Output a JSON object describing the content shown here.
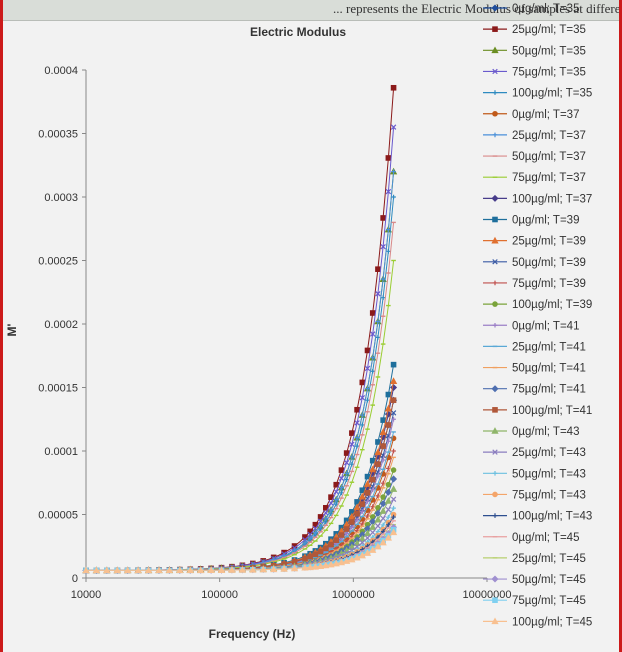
{
  "header_strip": {
    "text": "... represents the Electric Modulus of samples at different temperatures and doses"
  },
  "colors": {
    "red_border": "#cc1a1a",
    "series_palette": [
      "#1f4e9c",
      "#8b1a1a",
      "#6b8e23",
      "#6a5acd",
      "#2e8bc0",
      "#c05a1a",
      "#4a90d9",
      "#d98a8a",
      "#9acd32",
      "#483d8b",
      "#1f6f9c",
      "#e07030",
      "#3b5ba5",
      "#c0504d",
      "#7aa33a",
      "#9b7fc7",
      "#5aa9d6",
      "#f0a060",
      "#4f6fb0",
      "#b0583a",
      "#8fb56a",
      "#8a7dbf",
      "#6cc0e0",
      "#f4a56a",
      "#2e4f8f",
      "#e8a0a0",
      "#b8d070",
      "#a090d0",
      "#80d0f0",
      "#f8c090"
    ]
  },
  "chart_data": {
    "type": "line",
    "title": "Electric Modulus",
    "xlabel": "Frequency (Hz)",
    "ylabel": "M'",
    "xscale": "log",
    "xlim": [
      10000,
      10000000
    ],
    "ylim": [
      0,
      0.0004
    ],
    "xticks": [
      "10000",
      "100000",
      "1000000",
      "10000000"
    ],
    "yticks": [
      "0",
      "0.00005",
      "0.0001",
      "0.00015",
      "0.0002",
      "0.00025",
      "0.0003",
      "0.00035",
      "0.0004"
    ],
    "grid": false,
    "legend_position": "right",
    "x_range": [
      10000,
      2000000
    ],
    "series": [
      {
        "name": "0µg/ml; T=35",
        "marker": "diamond",
        "start": 6e-06,
        "end": 0.00014
      },
      {
        "name": "25µg/ml; T=35",
        "marker": "square",
        "start": 6e-06,
        "end": 0.000386
      },
      {
        "name": "50µg/ml; T=35",
        "marker": "triangle",
        "start": 6e-06,
        "end": 0.00032
      },
      {
        "name": "75µg/ml; T=35",
        "marker": "x",
        "start": 6e-06,
        "end": 0.000355
      },
      {
        "name": "100µg/ml; T=35",
        "marker": "star",
        "start": 6e-06,
        "end": 0.0003
      },
      {
        "name": "0µg/ml; T=37",
        "marker": "circle",
        "start": 6e-06,
        "end": 0.00011
      },
      {
        "name": "25µg/ml; T=37",
        "marker": "plus",
        "start": 6e-06,
        "end": 0.00032
      },
      {
        "name": "50µg/ml; T=37",
        "marker": "dash",
        "start": 6e-06,
        "end": 0.00028
      },
      {
        "name": "75µg/ml; T=37",
        "marker": "dash",
        "start": 6e-06,
        "end": 0.00025
      },
      {
        "name": "100µg/ml; T=37",
        "marker": "diamond",
        "start": 6e-06,
        "end": 0.00015
      },
      {
        "name": "0µg/ml; T=39",
        "marker": "square",
        "start": 6e-06,
        "end": 0.000168
      },
      {
        "name": "25µg/ml; T=39",
        "marker": "triangle",
        "start": 6e-06,
        "end": 0.000155
      },
      {
        "name": "50µg/ml; T=39",
        "marker": "x",
        "start": 6e-06,
        "end": 0.00013
      },
      {
        "name": "75µg/ml; T=39",
        "marker": "star",
        "start": 6e-06,
        "end": 0.0001
      },
      {
        "name": "100µg/ml; T=39",
        "marker": "circle",
        "start": 6e-06,
        "end": 8.5e-05
      },
      {
        "name": "0µg/ml; T=41",
        "marker": "plus",
        "start": 6e-06,
        "end": 0.000125
      },
      {
        "name": "25µg/ml; T=41",
        "marker": "dash",
        "start": 6e-06,
        "end": 0.000115
      },
      {
        "name": "50µg/ml; T=41",
        "marker": "dash",
        "start": 6e-06,
        "end": 9.5e-05
      },
      {
        "name": "75µg/ml; T=41",
        "marker": "diamond",
        "start": 6e-06,
        "end": 7.8e-05
      },
      {
        "name": "100µg/ml; T=41",
        "marker": "square",
        "start": 6e-06,
        "end": 0.00014
      },
      {
        "name": "0µg/ml; T=43",
        "marker": "triangle",
        "start": 6e-06,
        "end": 7e-05
      },
      {
        "name": "25µg/ml; T=43",
        "marker": "x",
        "start": 6e-06,
        "end": 6.2e-05
      },
      {
        "name": "50µg/ml; T=43",
        "marker": "star",
        "start": 6e-06,
        "end": 5.5e-05
      },
      {
        "name": "75µg/ml; T=43",
        "marker": "circle",
        "start": 6e-06,
        "end": 5e-05
      },
      {
        "name": "100µg/ml; T=43",
        "marker": "plus",
        "start": 6e-06,
        "end": 4.8e-05
      },
      {
        "name": "0µg/ml; T=45",
        "marker": "dash",
        "start": 6e-06,
        "end": 4.5e-05
      },
      {
        "name": "25µg/ml; T=45",
        "marker": "dash",
        "start": 6e-06,
        "end": 4.2e-05
      },
      {
        "name": "50µg/ml; T=45",
        "marker": "diamond",
        "start": 6e-06,
        "end": 4e-05
      },
      {
        "name": "75µg/ml; T=45",
        "marker": "square",
        "start": 6e-06,
        "end": 3.8e-05
      },
      {
        "name": "100µg/ml; T=45",
        "marker": "triangle",
        "start": 6e-06,
        "end": 3.6e-05
      }
    ]
  }
}
